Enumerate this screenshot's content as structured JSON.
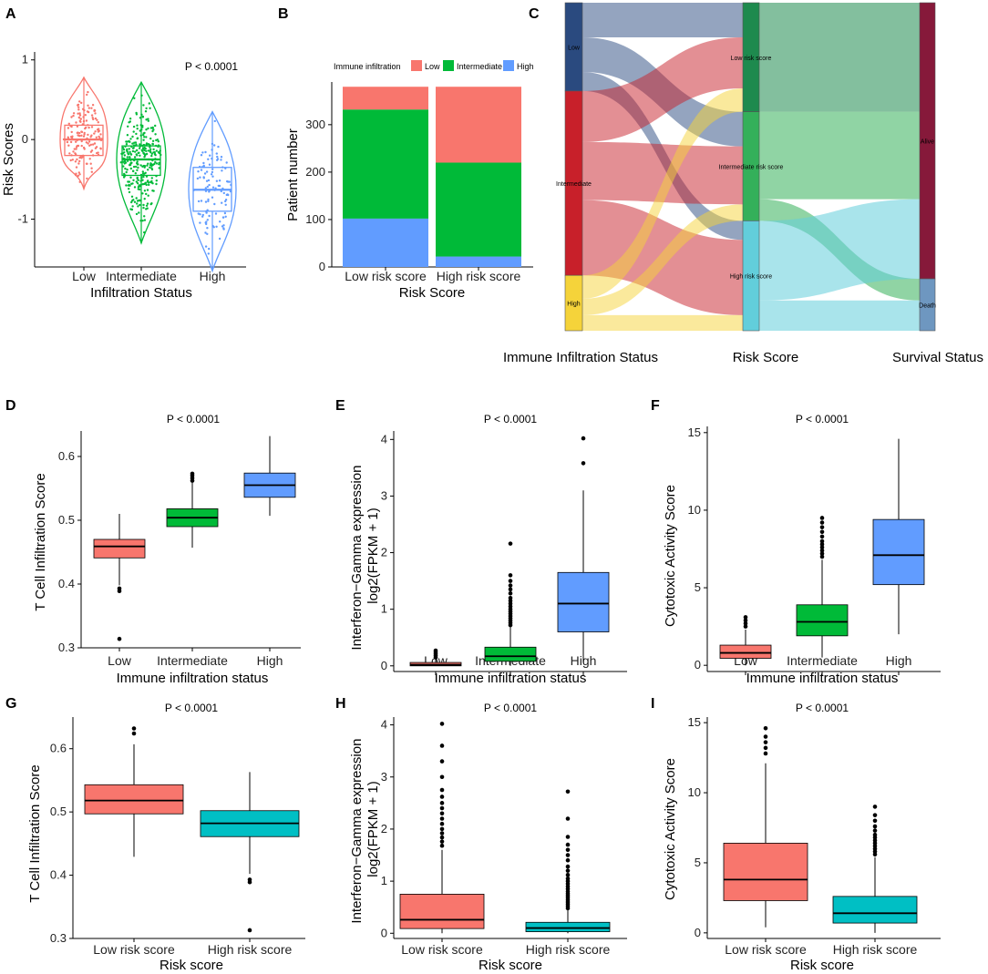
{
  "colors": {
    "low": "#F8766D",
    "intermediate": "#00BA38",
    "high": "#619CFF",
    "teal": "#00BFC4",
    "alluvial_low": "#2A4A7F",
    "alluvial_intermediate": "#C8202A",
    "alluvial_high": "#F5D33A",
    "risk_low": "#1E8A4E",
    "risk_intermediate": "#34B05A",
    "risk_high": "#62CEDB",
    "alive": "#86193A",
    "death": "#6E97C0"
  },
  "chart_data": [
    {
      "id": "A",
      "type": "violin-box-jitter",
      "categories": [
        "Low",
        "Intermediate",
        "High"
      ],
      "xlabel": "Infiltration Status",
      "ylabel": "Risk Scores",
      "pvalue": "P < 0.0001",
      "ylim": [
        -1.6,
        1.1
      ],
      "yticks": [
        -1,
        0,
        1
      ],
      "ytick_labels": [
        "-1",
        "0",
        "1"
      ],
      "boxes": [
        {
          "q1": -0.2,
          "median": 0.0,
          "q3": 0.18,
          "wmin": -0.62,
          "wmax": 0.78
        },
        {
          "q1": -0.45,
          "median": -0.25,
          "q3": -0.08,
          "wmin": -1.3,
          "wmax": 0.72
        },
        {
          "q1": -0.9,
          "median": -0.63,
          "q3": -0.35,
          "wmin": -1.65,
          "wmax": 0.35
        }
      ]
    },
    {
      "id": "B",
      "type": "stacked-bar",
      "categories": [
        "Low risk score",
        "High risk score"
      ],
      "xlabel": "Risk Score",
      "ylabel": "Patient number",
      "legend_title": "Immune infiltration",
      "legend": [
        "Low",
        "Intermediate",
        "High"
      ],
      "yticks": [
        0,
        100,
        200,
        300
      ],
      "ytick_labels": [
        "0",
        "100",
        "200",
        "300"
      ],
      "ylim": [
        0,
        390
      ],
      "series": [
        {
          "name": "High",
          "values": [
            102,
            22
          ]
        },
        {
          "name": "Intermediate",
          "values": [
            230,
            198
          ]
        },
        {
          "name": "Low",
          "values": [
            48,
            160
          ]
        }
      ]
    },
    {
      "id": "C",
      "type": "alluvial",
      "axis_labels": [
        "Immune Infiltration Status",
        "Risk Score",
        "Survival Status"
      ],
      "stratum1": [
        "Low",
        "Intermediate",
        "High"
      ],
      "stratum1_values": [
        102,
        213,
        64
      ],
      "stratum2": [
        "Low risk score",
        "Intermediate risk score",
        "High risk score"
      ],
      "stratum2_values": [
        126,
        126,
        127
      ],
      "stratum3": [
        "Alive",
        "Death"
      ],
      "stratum3_values": [
        319,
        60
      ],
      "flows12": [
        [
          40,
          40,
          22
        ],
        [
          59,
          67,
          87
        ],
        [
          27,
          19,
          18
        ]
      ],
      "flows23": [
        [
          126,
          0
        ],
        [
          101,
          25
        ],
        [
          92,
          35
        ]
      ]
    },
    {
      "id": "D",
      "type": "box",
      "categories": [
        "Low",
        "Intermediate",
        "High"
      ],
      "xlabel": "Immune infiltration status",
      "ylabel": "T Cell Infiltration Score",
      "pvalue": "P < 0.0001",
      "ylim": [
        0.3,
        0.64
      ],
      "yticks": [
        0.3,
        0.4,
        0.5,
        0.6
      ],
      "ytick_labels": [
        "0.3",
        "0.4",
        "0.5",
        "0.6"
      ],
      "boxes": [
        {
          "q1": 0.441,
          "median": 0.459,
          "q3": 0.47,
          "wmin": 0.398,
          "wmax": 0.51,
          "outliers": [
            0.393,
            0.389,
            0.314
          ]
        },
        {
          "q1": 0.49,
          "median": 0.504,
          "q3": 0.518,
          "wmin": 0.457,
          "wmax": 0.559,
          "outliers": [
            0.562,
            0.566,
            0.57,
            0.573
          ]
        },
        {
          "q1": 0.536,
          "median": 0.555,
          "q3": 0.574,
          "wmin": 0.507,
          "wmax": 0.632,
          "outliers": []
        }
      ]
    },
    {
      "id": "E",
      "type": "box",
      "categories": [
        "Low",
        "Intermediate",
        "High"
      ],
      "xlabel": "Immune infiltration status",
      "ylabel": "Interferon−Gamma expression log2(FPKM + 1)",
      "ylabel_lines": [
        "Interferon−Gamma expression",
        "log2(FPKM + 1)"
      ],
      "pvalue": "P < 0.0001",
      "ylim": [
        -0.1,
        4.15
      ],
      "yticks": [
        0,
        1,
        2,
        3,
        4
      ],
      "ytick_labels": [
        "0",
        "1",
        "2",
        "3",
        "4"
      ],
      "boxes": [
        {
          "q1": 0.0,
          "median": 0.02,
          "q3": 0.06,
          "wmin": 0.0,
          "wmax": 0.12,
          "outliers": [
            0.15,
            0.18,
            0.21,
            0.24,
            0.27
          ]
        },
        {
          "q1": 0.08,
          "median": 0.17,
          "q3": 0.33,
          "wmin": 0.0,
          "wmax": 0.7,
          "outliers": [
            0.72,
            0.76,
            0.8,
            0.84,
            0.88,
            0.92,
            0.96,
            1.0,
            1.05,
            1.1,
            1.15,
            1.2,
            1.28,
            1.35,
            1.42,
            1.5,
            1.6,
            2.16
          ]
        },
        {
          "q1": 0.6,
          "median": 1.1,
          "q3": 1.65,
          "wmin": 0.06,
          "wmax": 3.1,
          "outliers": [
            3.58,
            4.02
          ]
        }
      ]
    },
    {
      "id": "F",
      "type": "box",
      "categories": [
        "Low",
        "Intermediate",
        "High"
      ],
      "xlabel": "Immune infiltration status",
      "ylabel": "Cytotoxic Activity Score",
      "pvalue": "P < 0.0001",
      "ylim": [
        -0.4,
        15.4
      ],
      "yticks": [
        0,
        5,
        10,
        15
      ],
      "ytick_labels": [
        "0",
        "5",
        "10",
        "15"
      ],
      "boxes": [
        {
          "q1": 0.45,
          "median": 0.8,
          "q3": 1.3,
          "wmin": 0.0,
          "wmax": 2.3,
          "outliers": [
            2.5,
            2.7,
            2.9,
            3.1
          ]
        },
        {
          "q1": 1.9,
          "median": 2.8,
          "q3": 3.9,
          "wmin": 0.5,
          "wmax": 6.8,
          "outliers": [
            7.0,
            7.2,
            7.4,
            7.6,
            7.8,
            8.0,
            8.3,
            8.6,
            8.9,
            9.2,
            9.5
          ]
        },
        {
          "q1": 5.2,
          "median": 7.1,
          "q3": 9.4,
          "wmin": 2.0,
          "wmax": 14.6,
          "outliers": []
        }
      ]
    },
    {
      "id": "G",
      "type": "box",
      "categories": [
        "Low risk score",
        "High risk score"
      ],
      "xlabel": "Risk score",
      "ylabel": "T Cell Infiltration Score",
      "pvalue": "P < 0.0001",
      "ylim": [
        0.3,
        0.65
      ],
      "yticks": [
        0.3,
        0.4,
        0.5,
        0.6
      ],
      "ytick_labels": [
        "0.3",
        "0.4",
        "0.5",
        "0.6"
      ],
      "boxes": [
        {
          "q1": 0.497,
          "median": 0.518,
          "q3": 0.543,
          "wmin": 0.429,
          "wmax": 0.607,
          "outliers": [
            0.624,
            0.632
          ]
        },
        {
          "q1": 0.461,
          "median": 0.482,
          "q3": 0.502,
          "wmin": 0.402,
          "wmax": 0.563,
          "outliers": [
            0.393,
            0.389,
            0.313
          ]
        }
      ]
    },
    {
      "id": "H",
      "type": "box",
      "categories": [
        "Low risk score",
        "High risk score"
      ],
      "xlabel": "Risk score",
      "ylabel": "Interferon−Gamma expression log2(FPKM + 1)",
      "ylabel_lines": [
        "Interferon−Gamma expression",
        "log2(FPKM + 1)"
      ],
      "pvalue": "P < 0.0001",
      "ylim": [
        -0.1,
        4.15
      ],
      "yticks": [
        0,
        1,
        2,
        3,
        4
      ],
      "ytick_labels": [
        "0",
        "1",
        "2",
        "3",
        "4"
      ],
      "boxes": [
        {
          "q1": 0.09,
          "median": 0.26,
          "q3": 0.75,
          "wmin": 0.0,
          "wmax": 1.6,
          "outliers": [
            1.68,
            1.76,
            1.84,
            1.92,
            2.0,
            2.1,
            2.2,
            2.3,
            2.4,
            2.5,
            2.62,
            2.75,
            3.0,
            3.3,
            3.6,
            4.02
          ]
        },
        {
          "q1": 0.03,
          "median": 0.1,
          "q3": 0.21,
          "wmin": 0.0,
          "wmax": 0.46,
          "outliers": [
            0.48,
            0.52,
            0.56,
            0.6,
            0.64,
            0.68,
            0.72,
            0.76,
            0.8,
            0.85,
            0.9,
            0.95,
            1.0,
            1.05,
            1.12,
            1.2,
            1.28,
            1.4,
            1.5,
            1.6,
            1.7,
            1.85,
            2.2,
            2.72
          ]
        }
      ]
    },
    {
      "id": "I",
      "type": "box",
      "categories": [
        "Low risk score",
        "High risk score"
      ],
      "xlabel": "Risk score",
      "ylabel": "Cytotoxic Activity Score",
      "pvalue": "P < 0.0001",
      "ylim": [
        -0.4,
        15.4
      ],
      "yticks": [
        0,
        5,
        10,
        15
      ],
      "ytick_labels": [
        "0",
        "5",
        "10",
        "15"
      ],
      "boxes": [
        {
          "q1": 2.3,
          "median": 3.8,
          "q3": 6.4,
          "wmin": 0.4,
          "wmax": 12.1,
          "outliers": [
            12.8,
            13.2,
            13.6,
            14.0,
            14.6
          ]
        },
        {
          "q1": 0.7,
          "median": 1.4,
          "q3": 2.6,
          "wmin": 0.0,
          "wmax": 5.4,
          "outliers": [
            5.6,
            5.8,
            6.0,
            6.2,
            6.4,
            6.6,
            6.8,
            7.0,
            7.3,
            7.6,
            8.0,
            8.4,
            9.0
          ]
        }
      ]
    }
  ]
}
